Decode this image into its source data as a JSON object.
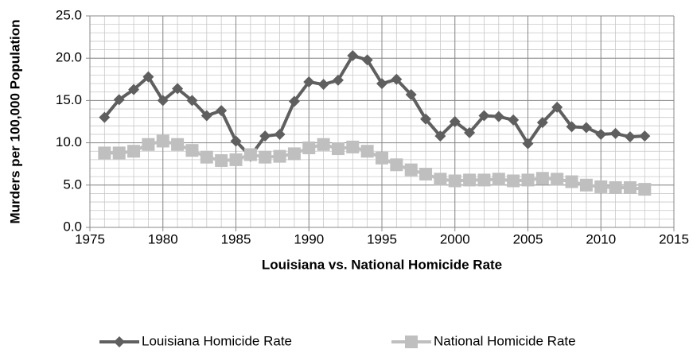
{
  "chart_data": {
    "type": "line",
    "x_label": "Louisiana vs. National Homicide Rate",
    "y_label": "Murders per 100,000 Population",
    "x": [
      1976,
      1977,
      1978,
      1979,
      1980,
      1981,
      1982,
      1983,
      1984,
      1985,
      1986,
      1987,
      1988,
      1989,
      1990,
      1991,
      1992,
      1993,
      1994,
      1995,
      1996,
      1997,
      1998,
      1999,
      2000,
      2001,
      2002,
      2003,
      2004,
      2005,
      2006,
      2007,
      2008,
      2009,
      2010,
      2011,
      2012,
      2013
    ],
    "series": [
      {
        "name": "Louisiana Homicide Rate",
        "color": "#5f5f5f",
        "marker": "diamond",
        "values": [
          13.0,
          15.1,
          16.3,
          17.8,
          15.0,
          16.4,
          15.0,
          13.2,
          13.8,
          10.2,
          8.4,
          10.8,
          11.0,
          14.9,
          17.2,
          16.9,
          17.4,
          20.3,
          19.8,
          17.0,
          17.5,
          15.7,
          12.8,
          10.8,
          12.5,
          11.2,
          13.2,
          13.1,
          12.7,
          9.9,
          12.4,
          14.2,
          11.9,
          11.8,
          11.0,
          11.1,
          10.7,
          10.8
        ]
      },
      {
        "name": "National Homicide Rate",
        "color": "#bfbfbf",
        "marker": "square",
        "values": [
          8.8,
          8.8,
          9.0,
          9.8,
          10.2,
          9.8,
          9.1,
          8.3,
          7.9,
          8.0,
          8.6,
          8.3,
          8.4,
          8.7,
          9.4,
          9.8,
          9.3,
          9.5,
          9.0,
          8.2,
          7.4,
          6.8,
          6.3,
          5.7,
          5.5,
          5.6,
          5.6,
          5.7,
          5.5,
          5.6,
          5.8,
          5.7,
          5.4,
          5.0,
          4.8,
          4.7,
          4.7,
          4.5
        ]
      }
    ],
    "xlim": [
      1975,
      2015
    ],
    "xticks": [
      1975,
      1980,
      1985,
      1990,
      1995,
      2000,
      2005,
      2010,
      2015
    ],
    "ylim": [
      0,
      25
    ],
    "yticks": [
      {
        "value": 0,
        "label": "0.0"
      },
      {
        "value": 5,
        "label": "5.0"
      },
      {
        "value": 10,
        "label": "10.0"
      },
      {
        "value": 15,
        "label": "15.0"
      },
      {
        "value": 20,
        "label": "20.0"
      },
      {
        "value": 25,
        "label": "25.0"
      }
    ],
    "grid": true,
    "minor_grid": {
      "x": 1,
      "y": 1
    },
    "legend": "bottom"
  }
}
